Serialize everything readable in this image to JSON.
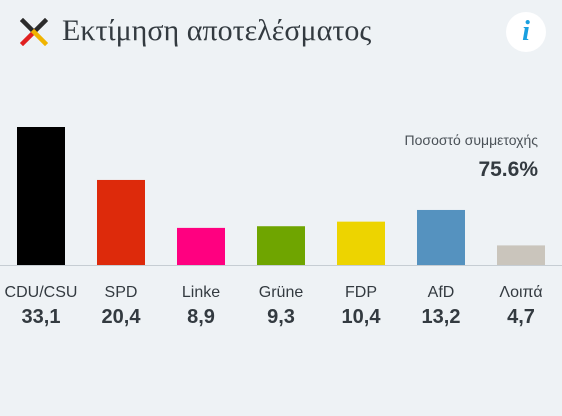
{
  "header": {
    "title": "Εκτίμηση αποτελέσματος",
    "info_icon": "info-icon",
    "info_glyph": "i",
    "logo_icon": "x-logo-icon"
  },
  "turnout": {
    "label": "Ποσοστό συμμετοχής",
    "value": "75.6%"
  },
  "chart_data": {
    "type": "bar",
    "categories": [
      "CDU/CSU",
      "SPD",
      "Linke",
      "Grüne",
      "FDP",
      "AfD",
      "Λοιπά"
    ],
    "values": [
      33.1,
      20.4,
      8.9,
      9.3,
      10.4,
      13.2,
      4.7
    ],
    "value_labels": [
      "33,1",
      "20,4",
      "8,9",
      "9,3",
      "10,4",
      "13,2",
      "4,7"
    ],
    "colors": [
      "#000000",
      "#dd2a0b",
      "#ff0080",
      "#6fa500",
      "#edd400",
      "#5592bf",
      "#cac5bc"
    ],
    "ylim": [
      0,
      33.1
    ],
    "grid": false,
    "legend": "none"
  }
}
